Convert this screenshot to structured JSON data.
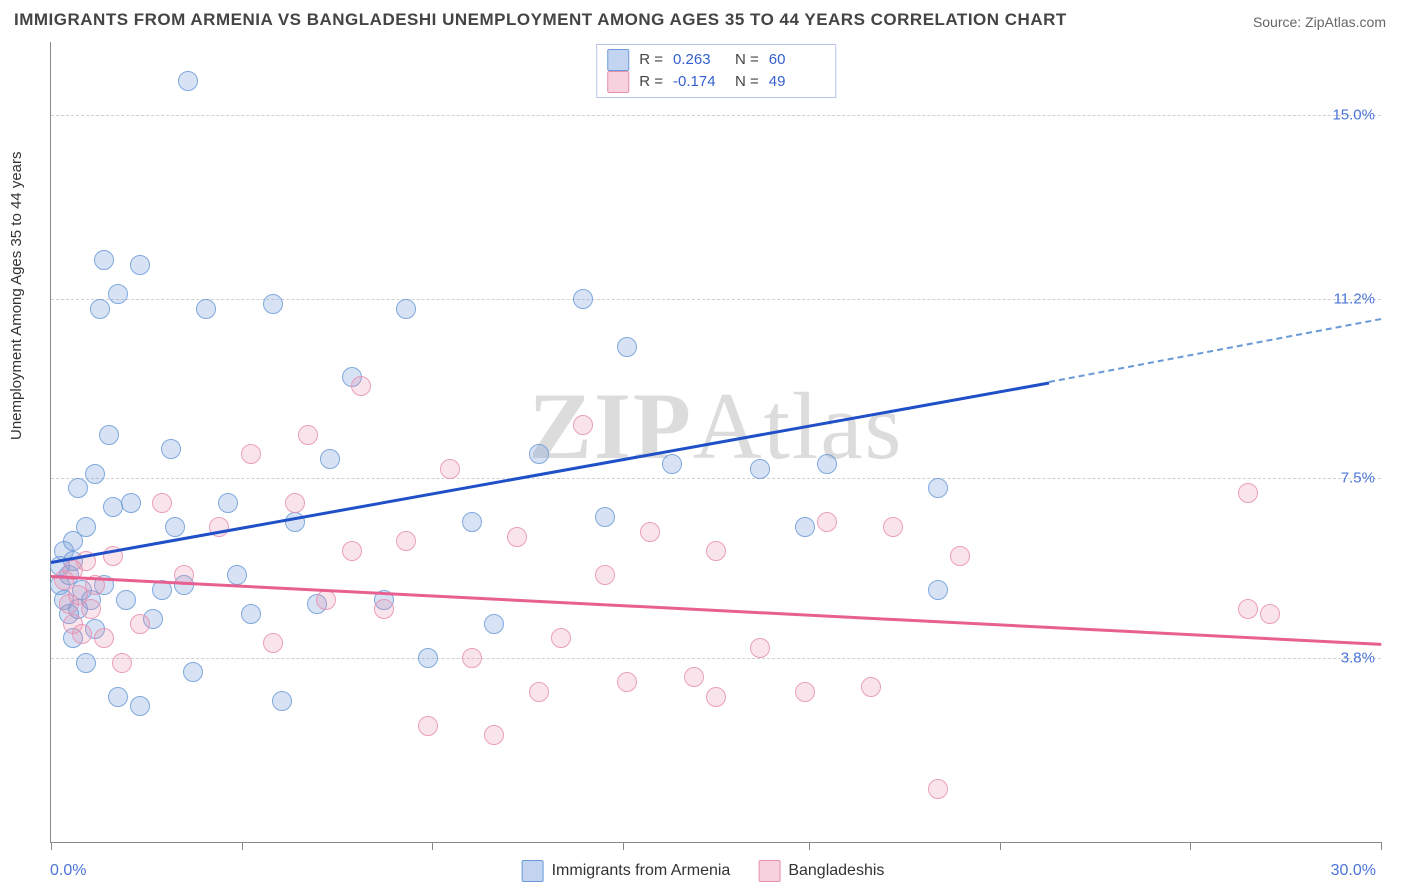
{
  "title": "IMMIGRANTS FROM ARMENIA VS BANGLADESHI UNEMPLOYMENT AMONG AGES 35 TO 44 YEARS CORRELATION CHART",
  "source": "Source: ZipAtlas.com",
  "ylabel": "Unemployment Among Ages 35 to 44 years",
  "watermark_a": "ZIP",
  "watermark_b": "Atlas",
  "chart": {
    "type": "scatter",
    "xlim": [
      0,
      30
    ],
    "ylim": [
      0,
      16.5
    ],
    "x_axis_left_label": "0.0%",
    "x_axis_right_label": "30.0%",
    "y_ticks": [
      {
        "v": 3.8,
        "label": "3.8%"
      },
      {
        "v": 7.5,
        "label": "7.5%"
      },
      {
        "v": 11.2,
        "label": "11.2%"
      },
      {
        "v": 15.0,
        "label": "15.0%"
      }
    ],
    "x_tick_positions": [
      0,
      4.3,
      8.6,
      12.9,
      17.1,
      21.4,
      25.7,
      30
    ],
    "background_color": "#ffffff",
    "grid_color": "#d0d0d0",
    "series": [
      {
        "name": "Immigrants from Armenia",
        "color_fill": "rgba(120,160,220,0.35)",
        "color_stroke": "#6a9ad8",
        "marker_size": 18,
        "R": 0.263,
        "N": 60,
        "trend": {
          "x1": 0,
          "y1": 5.8,
          "x2": 22.5,
          "y2": 9.5,
          "dash_to_x": 30,
          "dash_to_y": 10.8,
          "color": "#2050c8"
        },
        "points": [
          [
            0.2,
            5.7
          ],
          [
            0.2,
            5.3
          ],
          [
            0.3,
            6.0
          ],
          [
            0.3,
            5.0
          ],
          [
            0.4,
            5.5
          ],
          [
            0.4,
            4.7
          ],
          [
            0.5,
            6.2
          ],
          [
            0.5,
            4.2
          ],
          [
            0.5,
            5.8
          ],
          [
            0.6,
            4.8
          ],
          [
            0.6,
            7.3
          ],
          [
            0.7,
            5.2
          ],
          [
            0.8,
            6.5
          ],
          [
            0.8,
            3.7
          ],
          [
            0.9,
            5.0
          ],
          [
            1.0,
            7.6
          ],
          [
            1.0,
            4.4
          ],
          [
            1.1,
            11.0
          ],
          [
            1.2,
            12.0
          ],
          [
            1.2,
            5.3
          ],
          [
            1.3,
            8.4
          ],
          [
            1.4,
            6.9
          ],
          [
            1.5,
            3.0
          ],
          [
            1.5,
            11.3
          ],
          [
            1.7,
            5.0
          ],
          [
            1.8,
            7.0
          ],
          [
            2.0,
            11.9
          ],
          [
            2.0,
            2.8
          ],
          [
            2.3,
            4.6
          ],
          [
            2.5,
            5.2
          ],
          [
            2.7,
            8.1
          ],
          [
            2.8,
            6.5
          ],
          [
            3.0,
            5.3
          ],
          [
            3.1,
            15.7
          ],
          [
            3.2,
            3.5
          ],
          [
            3.5,
            11.0
          ],
          [
            4.0,
            7.0
          ],
          [
            4.2,
            5.5
          ],
          [
            4.5,
            4.7
          ],
          [
            5.0,
            11.1
          ],
          [
            5.2,
            2.9
          ],
          [
            5.5,
            6.6
          ],
          [
            6.0,
            4.9
          ],
          [
            6.3,
            7.9
          ],
          [
            6.8,
            9.6
          ],
          [
            7.5,
            5.0
          ],
          [
            8.0,
            11.0
          ],
          [
            8.5,
            3.8
          ],
          [
            9.5,
            6.6
          ],
          [
            10.0,
            4.5
          ],
          [
            11.0,
            8.0
          ],
          [
            12.0,
            11.2
          ],
          [
            12.5,
            6.7
          ],
          [
            13.0,
            10.2
          ],
          [
            14.0,
            7.8
          ],
          [
            16.0,
            7.7
          ],
          [
            17.0,
            6.5
          ],
          [
            17.5,
            7.8
          ],
          [
            20.0,
            5.2
          ],
          [
            20.0,
            7.3
          ]
        ]
      },
      {
        "name": "Bangladeshis",
        "color_fill": "rgba(235,140,170,0.28)",
        "color_stroke": "#e78fb0",
        "marker_size": 18,
        "R": -0.174,
        "N": 49,
        "trend": {
          "x1": 0,
          "y1": 5.5,
          "x2": 30,
          "y2": 4.1,
          "color": "#e86090"
        },
        "points": [
          [
            0.3,
            5.4
          ],
          [
            0.4,
            4.9
          ],
          [
            0.5,
            5.6
          ],
          [
            0.5,
            4.5
          ],
          [
            0.6,
            5.1
          ],
          [
            0.7,
            4.3
          ],
          [
            0.8,
            5.8
          ],
          [
            0.9,
            4.8
          ],
          [
            1.0,
            5.3
          ],
          [
            1.2,
            4.2
          ],
          [
            1.4,
            5.9
          ],
          [
            1.6,
            3.7
          ],
          [
            2.0,
            4.5
          ],
          [
            2.5,
            7.0
          ],
          [
            3.0,
            5.5
          ],
          [
            3.8,
            6.5
          ],
          [
            4.5,
            8.0
          ],
          [
            5.0,
            4.1
          ],
          [
            5.5,
            7.0
          ],
          [
            5.8,
            8.4
          ],
          [
            6.2,
            5.0
          ],
          [
            6.8,
            6.0
          ],
          [
            7.0,
            9.4
          ],
          [
            7.5,
            4.8
          ],
          [
            8.0,
            6.2
          ],
          [
            8.5,
            2.4
          ],
          [
            9.0,
            7.7
          ],
          [
            9.5,
            3.8
          ],
          [
            10.0,
            2.2
          ],
          [
            10.5,
            6.3
          ],
          [
            11.0,
            3.1
          ],
          [
            11.5,
            4.2
          ],
          [
            12.0,
            8.6
          ],
          [
            12.5,
            5.5
          ],
          [
            13.0,
            3.3
          ],
          [
            13.5,
            6.4
          ],
          [
            14.5,
            3.4
          ],
          [
            15.0,
            3.0
          ],
          [
            15.0,
            6.0
          ],
          [
            16.0,
            4.0
          ],
          [
            17.0,
            3.1
          ],
          [
            17.5,
            6.6
          ],
          [
            18.5,
            3.2
          ],
          [
            19.0,
            6.5
          ],
          [
            20.0,
            1.1
          ],
          [
            20.5,
            5.9
          ],
          [
            27.0,
            7.2
          ],
          [
            27.5,
            4.7
          ],
          [
            27.0,
            4.8
          ]
        ]
      }
    ],
    "legend_top": {
      "rows": [
        {
          "swatch": "blue",
          "r_label": "R =",
          "r_val": "0.263",
          "n_label": "N =",
          "n_val": "60"
        },
        {
          "swatch": "pink",
          "r_label": "R =",
          "r_val": "-0.174",
          "n_label": "N =",
          "n_val": "49"
        }
      ]
    },
    "legend_bottom": [
      {
        "swatch": "blue",
        "label": "Immigrants from Armenia"
      },
      {
        "swatch": "pink",
        "label": "Bangladeshis"
      }
    ]
  }
}
